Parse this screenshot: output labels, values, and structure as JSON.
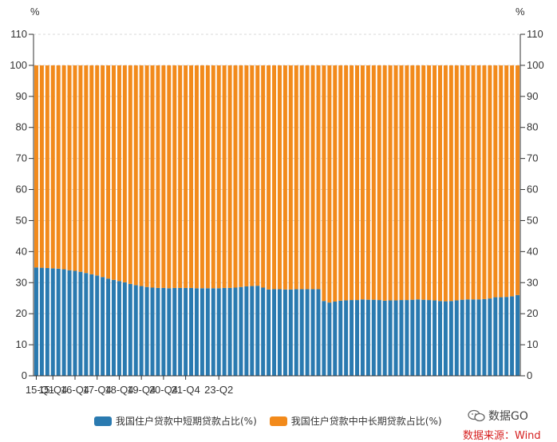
{
  "colors": {
    "short_term": "#2a7ab0",
    "long_term": "#f28a1b",
    "axis": "#333333",
    "grid": "#d8d8d8",
    "source_red": "#d62020"
  },
  "chart_data": {
    "type": "bar",
    "stacked": true,
    "title": "",
    "left_unit": "%",
    "right_unit": "%",
    "ylim": [
      0,
      110
    ],
    "yticks": [
      "0",
      "10",
      "20",
      "30",
      "40",
      "50",
      "60",
      "70",
      "80",
      "90",
      "100",
      "110"
    ],
    "xtick_labels": [
      "15-Q1",
      "15-Q4",
      "16-Q4",
      "17-Q4",
      "18-Q4",
      "19-Q4",
      "20-Q4",
      "21-Q4",
      "23-Q2"
    ],
    "series": [
      {
        "name": "我国住户贷款中短期贷款占比(%)",
        "values": [
          34.9,
          34.8,
          34.7,
          34.6,
          34.5,
          34.3,
          34.0,
          33.8,
          33.5,
          33.1,
          32.7,
          32.3,
          31.8,
          31.3,
          30.9,
          30.5,
          30.1,
          29.6,
          29.2,
          28.9,
          28.6,
          28.4,
          28.3,
          28.3,
          28.2,
          28.3,
          28.3,
          28.3,
          28.3,
          28.2,
          28.2,
          28.2,
          28.2,
          28.2,
          28.3,
          28.3,
          28.4,
          28.6,
          28.8,
          28.9,
          29.0,
          28.4,
          27.8,
          27.9,
          27.9,
          27.8,
          27.8,
          27.9,
          27.9,
          27.9,
          27.9,
          27.9,
          24.1,
          23.6,
          23.9,
          24.2,
          24.3,
          24.4,
          24.4,
          24.6,
          24.5,
          24.5,
          24.4,
          24.2,
          24.3,
          24.3,
          24.4,
          24.4,
          24.5,
          24.6,
          24.5,
          24.4,
          24.3,
          24.1,
          24.0,
          24.1,
          24.3,
          24.5,
          24.6,
          24.6,
          24.6,
          24.7,
          24.9,
          25.3,
          25.3,
          25.4,
          25.6,
          26.0
        ]
      },
      {
        "name": "我国住户贷款中中长期贷款占比(%)",
        "values": [
          65.1,
          65.2,
          65.3,
          65.4,
          65.5,
          65.7,
          66.0,
          66.2,
          66.5,
          66.9,
          67.3,
          67.7,
          68.2,
          68.7,
          69.1,
          69.5,
          69.9,
          70.4,
          70.8,
          71.1,
          71.4,
          71.6,
          71.7,
          71.7,
          71.8,
          71.7,
          71.7,
          71.7,
          71.7,
          71.8,
          71.8,
          71.8,
          71.8,
          71.8,
          71.7,
          71.7,
          71.6,
          71.4,
          71.2,
          71.1,
          71.0,
          71.6,
          72.2,
          72.1,
          72.1,
          72.2,
          72.2,
          72.1,
          72.1,
          72.1,
          72.1,
          72.1,
          75.9,
          76.4,
          76.1,
          75.8,
          75.7,
          75.6,
          75.6,
          75.4,
          75.5,
          75.5,
          75.6,
          75.8,
          75.7,
          75.7,
          75.6,
          75.6,
          75.5,
          75.4,
          75.5,
          75.6,
          75.7,
          75.9,
          76.0,
          75.9,
          75.7,
          75.5,
          75.4,
          75.4,
          75.4,
          75.3,
          75.1,
          74.7,
          74.7,
          74.6,
          74.4,
          74.0
        ]
      }
    ]
  },
  "legend": {
    "short_term_label": "我国住户贷款中短期贷款占比(%)",
    "long_term_label": "我国住户贷款中中长期贷款占比(%)"
  },
  "watermark": {
    "brand": "数据GO",
    "source": "数据来源：Wind"
  }
}
